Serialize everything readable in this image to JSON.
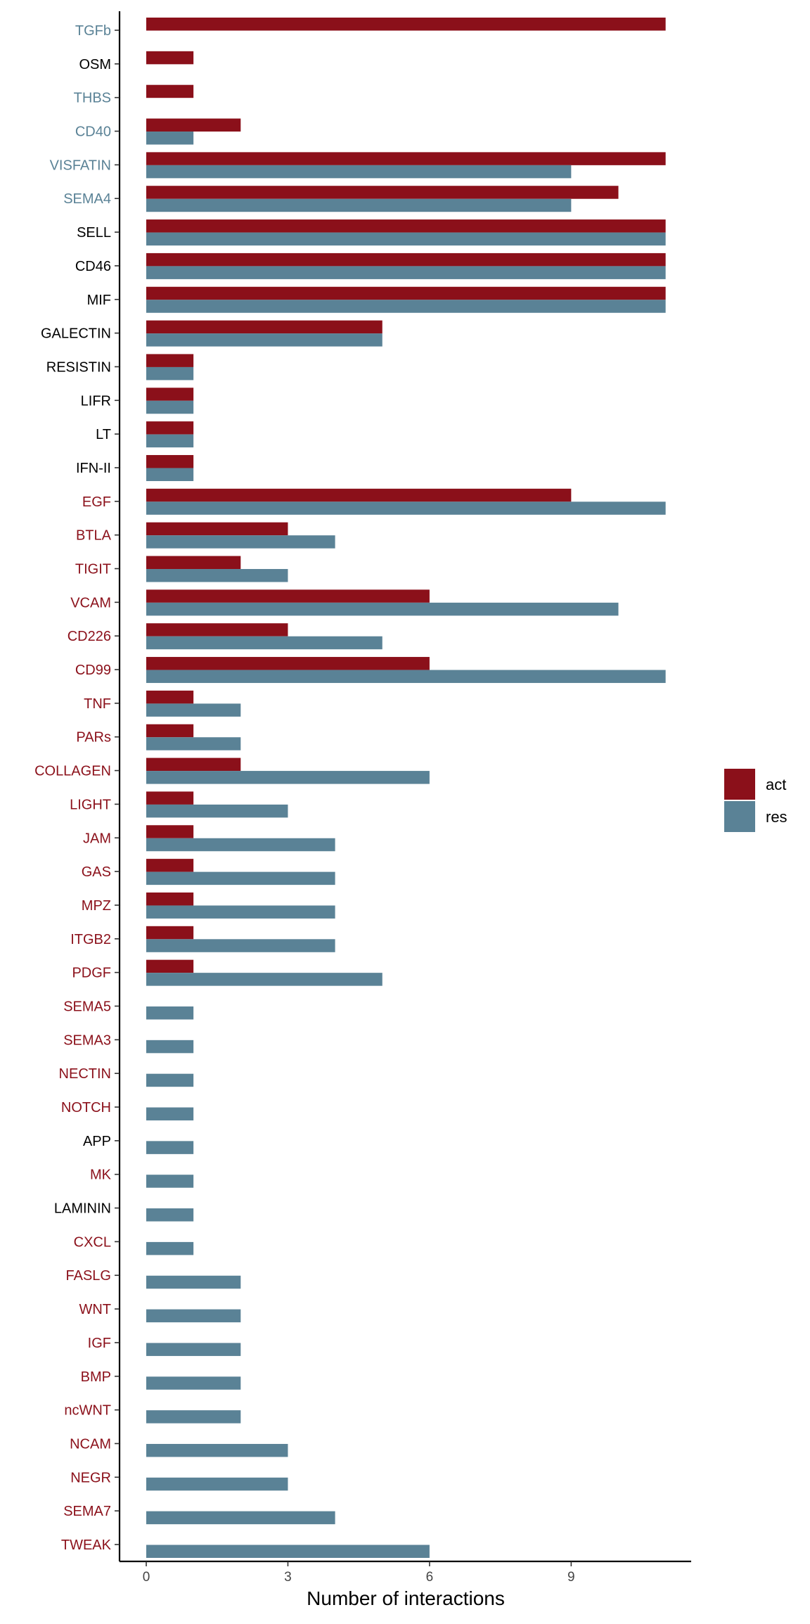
{
  "chart_data": {
    "type": "bar",
    "orientation": "horizontal",
    "categories": [
      "TGFb",
      "OSM",
      "THBS",
      "CD40",
      "VISFATIN",
      "SEMA4",
      "SELL",
      "CD46",
      "MIF",
      "GALECTIN",
      "RESISTIN",
      "LIFR",
      "LT",
      "IFN-II",
      "EGF",
      "BTLA",
      "TIGIT",
      "VCAM",
      "CD226",
      "CD99",
      "TNF",
      "PARs",
      "COLLAGEN",
      "LIGHT",
      "JAM",
      "GAS",
      "MPZ",
      "ITGB2",
      "PDGF",
      "SEMA5",
      "SEMA3",
      "NECTIN",
      "NOTCH",
      "APP",
      "MK",
      "LAMININ",
      "CXCL",
      "FASLG",
      "WNT",
      "IGF",
      "BMP",
      "ncWNT",
      "NCAM",
      "NEGR",
      "SEMA7",
      "TWEAK"
    ],
    "category_colors": [
      "#5a8296",
      "#000000",
      "#5a8296",
      "#5a8296",
      "#5a8296",
      "#5a8296",
      "#000000",
      "#000000",
      "#000000",
      "#000000",
      "#000000",
      "#000000",
      "#000000",
      "#000000",
      "#8b101a",
      "#8b101a",
      "#8b101a",
      "#8b101a",
      "#8b101a",
      "#8b101a",
      "#8b101a",
      "#8b101a",
      "#8b101a",
      "#8b101a",
      "#8b101a",
      "#8b101a",
      "#8b101a",
      "#8b101a",
      "#8b101a",
      "#8b101a",
      "#8b101a",
      "#8b101a",
      "#8b101a",
      "#000000",
      "#8b101a",
      "#000000",
      "#8b101a",
      "#8b101a",
      "#8b101a",
      "#8b101a",
      "#8b101a",
      "#8b101a",
      "#8b101a",
      "#8b101a",
      "#8b101a",
      "#8b101a"
    ],
    "series": [
      {
        "name": "act",
        "color": "#8b101a",
        "values": [
          11,
          1,
          1,
          2,
          11,
          10,
          11,
          11,
          11,
          5,
          1,
          1,
          1,
          1,
          9,
          3,
          2,
          6,
          3,
          6,
          1,
          1,
          2,
          1,
          1,
          1,
          1,
          1,
          1,
          0,
          0,
          0,
          0,
          0,
          0,
          0,
          0,
          0,
          0,
          0,
          0,
          0,
          0,
          0,
          0,
          0
        ]
      },
      {
        "name": "res",
        "color": "#5a8296",
        "values": [
          0,
          0,
          0,
          1,
          9,
          9,
          11,
          11,
          11,
          5,
          1,
          1,
          1,
          1,
          11,
          4,
          3,
          10,
          5,
          11,
          2,
          2,
          6,
          3,
          4,
          4,
          4,
          4,
          5,
          1,
          1,
          1,
          1,
          1,
          1,
          1,
          1,
          2,
          2,
          2,
          2,
          2,
          3,
          3,
          4,
          6
        ]
      }
    ],
    "x_ticks": [
      "0",
      "3",
      "6",
      "9"
    ],
    "xlabel": "Number of interactions",
    "ylabel": "",
    "xlim": [
      -0.1,
      11.55
    ],
    "grid": false,
    "legend_position": "right"
  }
}
